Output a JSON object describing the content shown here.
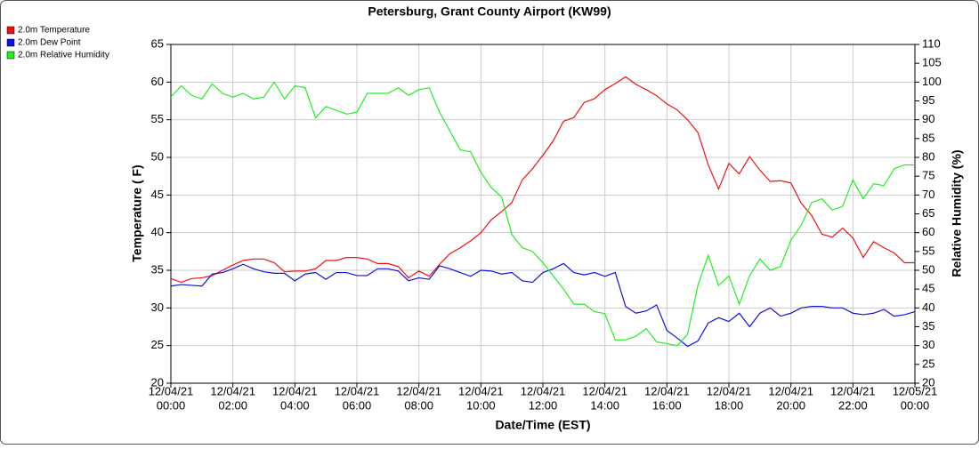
{
  "chart_data": {
    "type": "line",
    "title": "Petersburg, Grant County Airport (KW99)",
    "x_label": "Date/Time (EST)",
    "y_label": "Temperature ( F)",
    "y2_label": "Relative Humidity (%)",
    "grid": true,
    "legend": "top-left",
    "xlim": [
      0,
      1440
    ],
    "xticks": [
      {
        "value": 0,
        "label": [
          "12/04/21",
          "00:00"
        ]
      },
      {
        "value": 120,
        "label": [
          "12/04/21",
          "02:00"
        ]
      },
      {
        "value": 240,
        "label": [
          "12/04/21",
          "04:00"
        ]
      },
      {
        "value": 360,
        "label": [
          "12/04/21",
          "06:00"
        ]
      },
      {
        "value": 480,
        "label": [
          "12/04/21",
          "08:00"
        ]
      },
      {
        "value": 600,
        "label": [
          "12/04/21",
          "10:00"
        ]
      },
      {
        "value": 720,
        "label": [
          "12/04/21",
          "12:00"
        ]
      },
      {
        "value": 840,
        "label": [
          "12/04/21",
          "14:00"
        ]
      },
      {
        "value": 960,
        "label": [
          "12/04/21",
          "16:00"
        ]
      },
      {
        "value": 1080,
        "label": [
          "12/04/21",
          "18:00"
        ]
      },
      {
        "value": 1200,
        "label": [
          "12/04/21",
          "20:00"
        ]
      },
      {
        "value": 1320,
        "label": [
          "12/04/21",
          "22:00"
        ]
      },
      {
        "value": 1440,
        "label": [
          "12/05/21",
          "00:00"
        ]
      }
    ],
    "ylim": [
      20,
      65
    ],
    "yticks": [
      20,
      25,
      30,
      35,
      40,
      45,
      50,
      55,
      60,
      65
    ],
    "y2lim": [
      20,
      110
    ],
    "y2ticks": [
      20,
      25,
      30,
      35,
      40,
      45,
      50,
      55,
      60,
      65,
      70,
      75,
      80,
      85,
      90,
      95,
      100,
      105,
      110
    ],
    "x": [
      0,
      20,
      40,
      60,
      80,
      100,
      120,
      140,
      160,
      180,
      200,
      220,
      240,
      260,
      280,
      300,
      320,
      340,
      360,
      380,
      400,
      420,
      440,
      460,
      480,
      500,
      520,
      540,
      560,
      580,
      600,
      620,
      640,
      660,
      680,
      700,
      720,
      740,
      760,
      780,
      800,
      820,
      840,
      860,
      880,
      900,
      920,
      940,
      960,
      980,
      1000,
      1020,
      1040,
      1060,
      1080,
      1100,
      1120,
      1140,
      1160,
      1180,
      1200,
      1220,
      1240,
      1260,
      1280,
      1300,
      1320,
      1340,
      1360,
      1380,
      1400,
      1420,
      1440
    ],
    "series": [
      {
        "name": "2.0m Temperature",
        "color": "#ee1111",
        "values": [
          33.9,
          33.4,
          33.9,
          34.0,
          34.3,
          35.0,
          35.7,
          36.3,
          36.5,
          36.5,
          36.0,
          34.8,
          34.9,
          34.9,
          35.2,
          36.3,
          36.3,
          36.7,
          36.7,
          36.5,
          35.9,
          35.9,
          35.5,
          34.0,
          34.9,
          34.2,
          35.8,
          37.2,
          38.0,
          38.9,
          40.0,
          41.7,
          42.8,
          44.0,
          47.0,
          48.5,
          50.3,
          52.2,
          54.8,
          55.3,
          57.3,
          57.8,
          59.0,
          59.8,
          60.7,
          59.7,
          59.0,
          58.2,
          57.1,
          56.3,
          55.0,
          53.3,
          49.0,
          45.8,
          49.2,
          47.8,
          50.1,
          48.3,
          46.8,
          46.9,
          46.6,
          43.9,
          42.3,
          39.8,
          39.4,
          40.6,
          39.3,
          36.7,
          38.8,
          38.0,
          37.3,
          36.0,
          36.0
        ]
      },
      {
        "name": "2.0m Dew Point",
        "color": "#1111dd",
        "values": [
          32.9,
          33.1,
          33.0,
          32.9,
          34.5,
          34.7,
          35.2,
          35.8,
          35.2,
          34.8,
          34.6,
          34.6,
          33.6,
          34.5,
          34.7,
          33.8,
          34.7,
          34.7,
          34.3,
          34.3,
          35.2,
          35.2,
          34.9,
          33.6,
          34.0,
          33.8,
          35.6,
          35.2,
          34.7,
          34.2,
          35.0,
          34.9,
          34.5,
          34.7,
          33.6,
          33.4,
          34.7,
          35.2,
          35.9,
          34.7,
          34.4,
          34.7,
          34.2,
          34.7,
          30.2,
          29.3,
          29.6,
          30.4,
          27.0,
          26.0,
          24.9,
          25.6,
          28.0,
          28.7,
          28.2,
          29.3,
          27.5,
          29.3,
          30.0,
          28.9,
          29.3,
          30.0,
          30.2,
          30.2,
          30.0,
          30.0,
          29.3,
          29.1,
          29.3,
          29.8,
          28.9,
          29.1,
          29.5
        ]
      },
      {
        "name": "2.0m Relative Humidity",
        "color": "#22ee22",
        "axis": "y2",
        "values": [
          96,
          99,
          96.5,
          95.5,
          99.5,
          97,
          96,
          97,
          95.5,
          96,
          100,
          95.5,
          99,
          98.5,
          90.5,
          93.5,
          92.5,
          91.5,
          92,
          97,
          97,
          97,
          98.5,
          96.5,
          98,
          98.5,
          92,
          87,
          82,
          81.5,
          76,
          72,
          69.5,
          59.5,
          56,
          55,
          52,
          48.5,
          45,
          41,
          41,
          39,
          38.5,
          31.5,
          31.5,
          32.5,
          34.5,
          31,
          30.5,
          30,
          33,
          46,
          54,
          46,
          48.5,
          41,
          48.5,
          53,
          50,
          51,
          58,
          62,
          68,
          69,
          66,
          67,
          74,
          69,
          73,
          72.5,
          77,
          78,
          78
        ]
      }
    ]
  }
}
